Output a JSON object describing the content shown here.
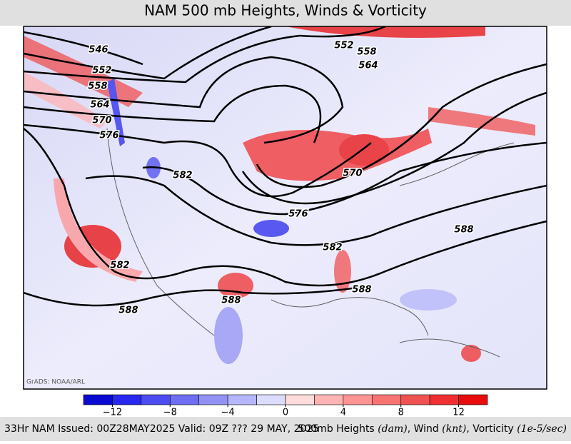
{
  "header": {
    "title": "NAM 500 mb Heights, Winds & Vorticity"
  },
  "map": {
    "credit": "GrADS: NOAA/ARL",
    "contour_labels": [
      546,
      552,
      558,
      564,
      570,
      576,
      582,
      582,
      588,
      552,
      558,
      564,
      570,
      576,
      582,
      588,
      588,
      588
    ]
  },
  "colorbar": {
    "range": [
      -14,
      14
    ],
    "colors": [
      "#0a0ad2",
      "#2828ee",
      "#4c4cf0",
      "#6e6ef2",
      "#9292f4",
      "#b6b6fa",
      "#dcdcff",
      "#ffdcdc",
      "#ffb4b4",
      "#ff9494",
      "#f87474",
      "#f05252",
      "#f03030",
      "#e80c0c"
    ],
    "ticks": [
      {
        "value": -12,
        "label": "−12"
      },
      {
        "value": -8,
        "label": "−8"
      },
      {
        "value": -4,
        "label": "−4"
      },
      0,
      4,
      8,
      12
    ]
  },
  "footer": {
    "left": "33Hr NAM Issued: 00Z28MAY2025 Valid: 09Z ??? 29 MAY, 2025",
    "right": [
      "500mb Heights ",
      "(dam)",
      ", Wind ",
      "(knt)",
      ", Vorticity ",
      "(1e-5/sec)"
    ]
  }
}
